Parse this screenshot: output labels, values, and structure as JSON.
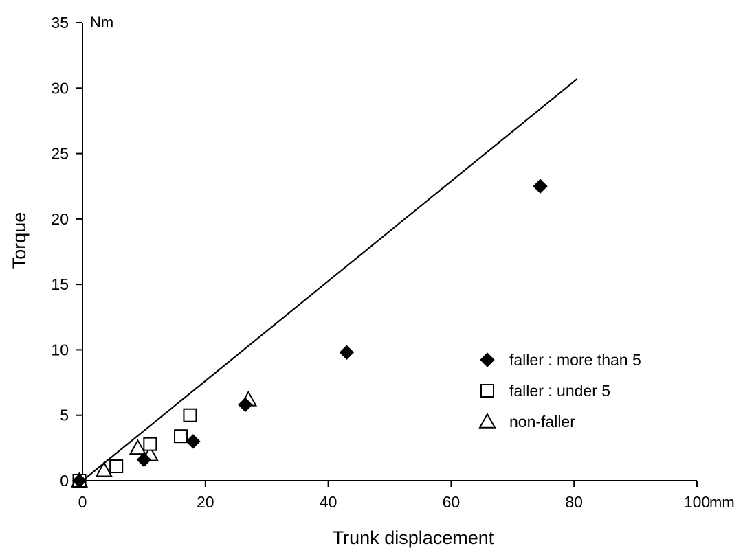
{
  "chart_data": {
    "type": "scatter",
    "xlabel": "Trunk displacement",
    "ylabel": "Torque",
    "x_unit": "mm",
    "y_unit": "Nm",
    "xlim": [
      0,
      100
    ],
    "ylim": [
      0,
      35
    ],
    "x_ticks": [
      0,
      20,
      40,
      60,
      80,
      100
    ],
    "y_ticks": [
      0,
      5,
      10,
      15,
      20,
      25,
      30,
      35
    ],
    "grid": false,
    "legend_position": "right",
    "series": [
      {
        "name": "faller : more than 5",
        "marker": "diamond-filled",
        "color": "#000000",
        "points": [
          [
            -0.5,
            0
          ],
          [
            10,
            1.6
          ],
          [
            18,
            3.0
          ],
          [
            26.5,
            5.8
          ],
          [
            43,
            9.8
          ],
          [
            74.5,
            22.5
          ]
        ]
      },
      {
        "name": "faller : under 5",
        "marker": "square-open",
        "color": "#000000",
        "points": [
          [
            -0.5,
            0
          ],
          [
            5.5,
            1.1
          ],
          [
            11,
            2.8
          ],
          [
            16,
            3.4
          ],
          [
            17.5,
            5.0
          ]
        ]
      },
      {
        "name": "non-faller",
        "marker": "triangle-open",
        "color": "#000000",
        "points": [
          [
            -0.5,
            0
          ],
          [
            3.5,
            0.8
          ],
          [
            9,
            2.5
          ],
          [
            11,
            2.0
          ],
          [
            27,
            6.2
          ]
        ]
      }
    ],
    "trend_line": {
      "from": [
        0,
        0
      ],
      "to": [
        80.5,
        30.7
      ],
      "color": "#000000"
    }
  }
}
